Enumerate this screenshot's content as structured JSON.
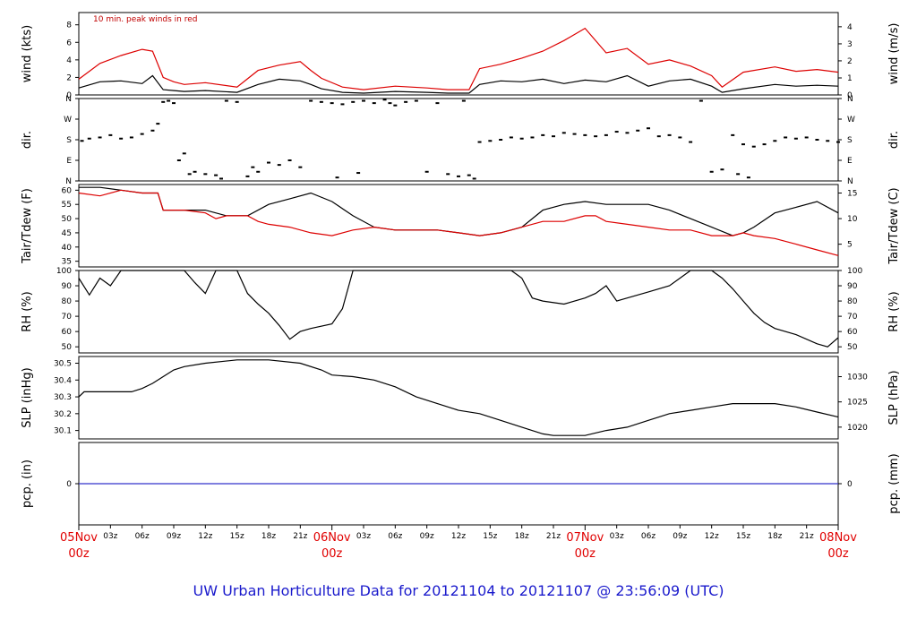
{
  "footer": {
    "title": "UW Urban Horticulture Data for 20121104  to  20121107 @ 23:56:09  (UTC)"
  },
  "x_axis": {
    "day_labels": [
      {
        "day": "05Nov",
        "hour": "00z"
      },
      {
        "day": "06Nov",
        "hour": "00z"
      },
      {
        "day": "07Nov",
        "hour": "00z"
      },
      {
        "day": "08Nov",
        "hour": "00z"
      }
    ],
    "hour_labels": [
      "03z",
      "06z",
      "09z",
      "12z",
      "15z",
      "18z",
      "21z"
    ],
    "range_hours": [
      0,
      72
    ]
  },
  "chart_data": [
    {
      "type": "line",
      "id": "wind",
      "ylabel_left": "wind (kts)",
      "ylabel_right": "wind (m/s)",
      "annotation": "10 min. peak winds in red",
      "ylim": [
        0,
        9.4
      ],
      "left_ticks": [
        0,
        2,
        4,
        6,
        8
      ],
      "right_ticks": [
        {
          "label": "0",
          "value": 0
        },
        {
          "label": "1",
          "value": 1.94
        },
        {
          "label": "2",
          "value": 3.89
        },
        {
          "label": "3",
          "value": 5.83
        },
        {
          "label": "4",
          "value": 7.78
        }
      ],
      "series": [
        {
          "color": "#000000",
          "x": [
            0,
            2,
            4,
            6,
            7,
            8,
            9,
            10,
            12,
            15,
            17,
            19,
            21,
            22,
            23,
            25,
            27,
            30,
            33,
            35,
            37,
            38,
            40,
            42,
            44,
            46,
            48,
            50,
            52,
            54,
            56,
            58,
            60,
            61,
            63,
            66,
            68,
            70,
            72
          ],
          "y": [
            0.8,
            1.5,
            1.6,
            1.3,
            2.2,
            0.6,
            0.5,
            0.4,
            0.5,
            0.3,
            1.2,
            1.8,
            1.6,
            1.2,
            0.7,
            0.3,
            0.2,
            0.4,
            0.3,
            0.2,
            0.2,
            1.2,
            1.6,
            1.5,
            1.8,
            1.3,
            1.7,
            1.5,
            2.2,
            1.0,
            1.6,
            1.8,
            1.0,
            0.3,
            0.7,
            1.2,
            1.0,
            1.1,
            1.0
          ]
        },
        {
          "color": "#dd0000",
          "x": [
            0,
            2,
            4,
            6,
            7,
            8,
            9,
            10,
            12,
            15,
            17,
            19,
            21,
            22,
            23,
            25,
            27,
            30,
            33,
            35,
            37,
            38,
            40,
            42,
            44,
            46,
            48,
            50,
            52,
            54,
            56,
            58,
            60,
            61,
            63,
            66,
            68,
            70,
            72
          ],
          "y": [
            1.8,
            3.6,
            4.5,
            5.2,
            5.0,
            2.0,
            1.5,
            1.2,
            1.4,
            0.9,
            2.8,
            3.4,
            3.8,
            2.8,
            1.9,
            0.9,
            0.6,
            1.0,
            0.8,
            0.6,
            0.6,
            3.0,
            3.5,
            4.2,
            5.0,
            6.2,
            7.6,
            4.8,
            5.3,
            3.5,
            4.0,
            3.3,
            2.2,
            0.9,
            2.6,
            3.2,
            2.7,
            2.9,
            2.6
          ]
        }
      ]
    },
    {
      "type": "scatter",
      "id": "dir",
      "ylabel_left": "dir.",
      "ylabel_right": "dir.",
      "ylim": [
        0,
        360
      ],
      "left_ticks": [
        {
          "label": "N",
          "value": 0
        },
        {
          "label": "E",
          "value": 90
        },
        {
          "label": "S",
          "value": 180
        },
        {
          "label": "W",
          "value": 270
        },
        {
          "label": "N",
          "value": 360
        }
      ],
      "right_ticks": [
        {
          "label": "N",
          "value": 0
        },
        {
          "label": "E",
          "value": 90
        },
        {
          "label": "S",
          "value": 180
        },
        {
          "label": "W",
          "value": 270
        },
        {
          "label": "N",
          "value": 360
        }
      ],
      "series": [
        {
          "color": "#000000",
          "x": [
            0.3,
            1,
            2,
            3,
            4,
            5,
            6,
            7,
            7.5,
            8,
            8.5,
            9,
            10,
            11,
            12,
            13,
            14,
            15,
            16,
            17,
            18,
            19,
            20,
            21,
            22,
            23,
            24,
            25,
            26,
            27,
            28,
            29,
            30,
            31,
            32,
            33,
            34,
            35,
            36,
            37,
            38,
            39,
            40,
            41,
            42,
            43,
            44,
            45,
            46,
            47,
            48,
            49,
            50,
            51,
            52,
            53,
            54,
            55,
            56,
            57,
            58,
            59,
            60,
            61,
            62,
            63,
            64,
            65,
            66,
            67,
            68,
            69,
            70,
            71,
            72,
            9.5,
            10.5,
            13.5,
            16.5,
            24.5,
            26.5,
            29.5,
            36.5,
            37.5,
            62.5,
            63.5
          ],
          "y": [
            175,
            185,
            190,
            200,
            185,
            190,
            205,
            220,
            250,
            345,
            350,
            340,
            120,
            40,
            30,
            25,
            350,
            345,
            20,
            40,
            80,
            70,
            90,
            60,
            350,
            345,
            340,
            335,
            345,
            350,
            340,
            355,
            330,
            345,
            350,
            40,
            340,
            30,
            20,
            25,
            170,
            175,
            180,
            190,
            185,
            190,
            200,
            195,
            210,
            205,
            200,
            195,
            200,
            215,
            210,
            220,
            230,
            195,
            200,
            190,
            170,
            350,
            40,
            50,
            200,
            160,
            150,
            160,
            175,
            190,
            185,
            190,
            180,
            175,
            170,
            90,
            30,
            10,
            60,
            15,
            35,
            340,
            350,
            10,
            30,
            15
          ]
        }
      ]
    },
    {
      "type": "line",
      "id": "tair",
      "ylabel_left": "Tair/Tdew (F)",
      "ylabel_right": "Tair/Tdew (C)",
      "ylim": [
        33,
        62
      ],
      "left_ticks": [
        35,
        40,
        45,
        50,
        55,
        60
      ],
      "right_ticks": [
        {
          "label": "5",
          "value": 41
        },
        {
          "label": "10",
          "value": 50
        },
        {
          "label": "15",
          "value": 59
        }
      ],
      "series": [
        {
          "color": "#000000",
          "x": [
            0,
            2,
            4,
            6,
            7.5,
            8,
            10,
            12,
            14,
            16,
            18,
            20,
            22,
            24,
            26,
            28,
            30,
            32,
            34,
            36,
            38,
            40,
            42,
            44,
            46,
            48,
            50,
            52,
            54,
            56,
            58,
            60,
            62,
            63,
            64,
            66,
            68,
            70,
            72
          ],
          "y": [
            61,
            61,
            60,
            59,
            59,
            53,
            53,
            53,
            51,
            51,
            55,
            57,
            59,
            56,
            51,
            47,
            46,
            46,
            46,
            45,
            44,
            45,
            47,
            53,
            55,
            56,
            55,
            55,
            55,
            53,
            50,
            47,
            44,
            45,
            47,
            52,
            54,
            56,
            52
          ]
        },
        {
          "color": "#dd0000",
          "x": [
            0,
            2,
            4,
            6,
            7.5,
            8,
            10,
            12,
            13,
            14,
            16,
            17,
            18,
            20,
            22,
            24,
            26,
            28,
            30,
            32,
            34,
            36,
            38,
            40,
            42,
            44,
            46,
            48,
            49,
            50,
            52,
            54,
            56,
            58,
            60,
            62,
            63,
            64,
            66,
            68,
            70,
            72
          ],
          "y": [
            59,
            58,
            60,
            59,
            59,
            53,
            53,
            52,
            50,
            51,
            51,
            49,
            48,
            47,
            45,
            44,
            46,
            47,
            46,
            46,
            46,
            45,
            44,
            45,
            47,
            49,
            49,
            51,
            51,
            49,
            48,
            47,
            46,
            46,
            44,
            44,
            45,
            44,
            43,
            41,
            39,
            37
          ]
        }
      ]
    },
    {
      "type": "line",
      "id": "rh",
      "ylabel_left": "RH (%)",
      "ylabel_right": "RH (%)",
      "ylim": [
        46,
        100
      ],
      "left_ticks": [
        50,
        60,
        70,
        80,
        90,
        100
      ],
      "right_ticks": [
        {
          "label": "50",
          "value": 50
        },
        {
          "label": "60",
          "value": 60
        },
        {
          "label": "70",
          "value": 70
        },
        {
          "label": "80",
          "value": 80
        },
        {
          "label": "90",
          "value": 90
        },
        {
          "label": "100",
          "value": 100
        }
      ],
      "series": [
        {
          "color": "#000000",
          "x": [
            0,
            1,
            2,
            3,
            4,
            5,
            6,
            7,
            8,
            9,
            10,
            11,
            12,
            13,
            14,
            15,
            16,
            17,
            18,
            19,
            20,
            21,
            22,
            24,
            25,
            26,
            28,
            30,
            32,
            34,
            36,
            38,
            40,
            41,
            42,
            43,
            44,
            46,
            48,
            49,
            50,
            51,
            52,
            53,
            54,
            56,
            58,
            60,
            61,
            62,
            63,
            64,
            65,
            66,
            68,
            70,
            71,
            72
          ],
          "y": [
            95,
            84,
            95,
            90,
            100,
            100,
            100,
            100,
            100,
            100,
            100,
            92,
            85,
            100,
            100,
            100,
            85,
            78,
            72,
            64,
            55,
            60,
            62,
            65,
            75,
            100,
            100,
            100,
            100,
            100,
            100,
            100,
            100,
            100,
            95,
            82,
            80,
            78,
            82,
            85,
            90,
            80,
            82,
            84,
            86,
            90,
            100,
            100,
            95,
            88,
            80,
            72,
            66,
            62,
            58,
            52,
            50,
            56
          ]
        }
      ]
    },
    {
      "type": "line",
      "id": "slp",
      "ylabel_left": "SLP (inHg)",
      "ylabel_right": "SLP (hPa)",
      "ylim": [
        30.05,
        30.54
      ],
      "left_ticks": [
        30.1,
        30.2,
        30.3,
        30.4,
        30.5
      ],
      "right_ticks": [
        {
          "label": "1020",
          "value": 30.12
        },
        {
          "label": "1025",
          "value": 30.27
        },
        {
          "label": "1030",
          "value": 30.42
        }
      ],
      "series": [
        {
          "color": "#000000",
          "x": [
            0,
            0.5,
            5,
            6,
            7,
            8,
            9,
            10,
            12,
            15,
            18,
            21,
            23,
            24,
            26,
            28,
            30,
            32,
            34,
            35,
            36,
            38,
            40,
            42,
            44,
            45,
            46,
            48,
            50,
            52,
            54,
            56,
            58,
            60,
            62,
            64,
            66,
            68,
            70,
            72
          ],
          "y": [
            30.3,
            30.33,
            30.33,
            30.35,
            30.38,
            30.42,
            30.46,
            30.48,
            30.5,
            30.52,
            30.52,
            30.5,
            30.46,
            30.43,
            30.42,
            30.4,
            30.36,
            30.3,
            30.26,
            30.24,
            30.22,
            30.2,
            30.16,
            30.12,
            30.08,
            30.07,
            30.07,
            30.07,
            30.1,
            30.12,
            30.16,
            30.2,
            30.22,
            30.24,
            30.26,
            30.26,
            30.26,
            30.24,
            30.21,
            30.18
          ]
        }
      ]
    },
    {
      "type": "line",
      "id": "pcp",
      "ylabel_left": "pcp. (in)",
      "ylabel_right": "pcp. (mm)",
      "ylim": [
        -1,
        1
      ],
      "left_ticks": [
        0
      ],
      "right_ticks": [
        {
          "label": "0",
          "value": 0
        }
      ],
      "series": [
        {
          "color": "#3333cc",
          "x": [
            0,
            72
          ],
          "y": [
            0,
            0
          ]
        }
      ]
    }
  ]
}
